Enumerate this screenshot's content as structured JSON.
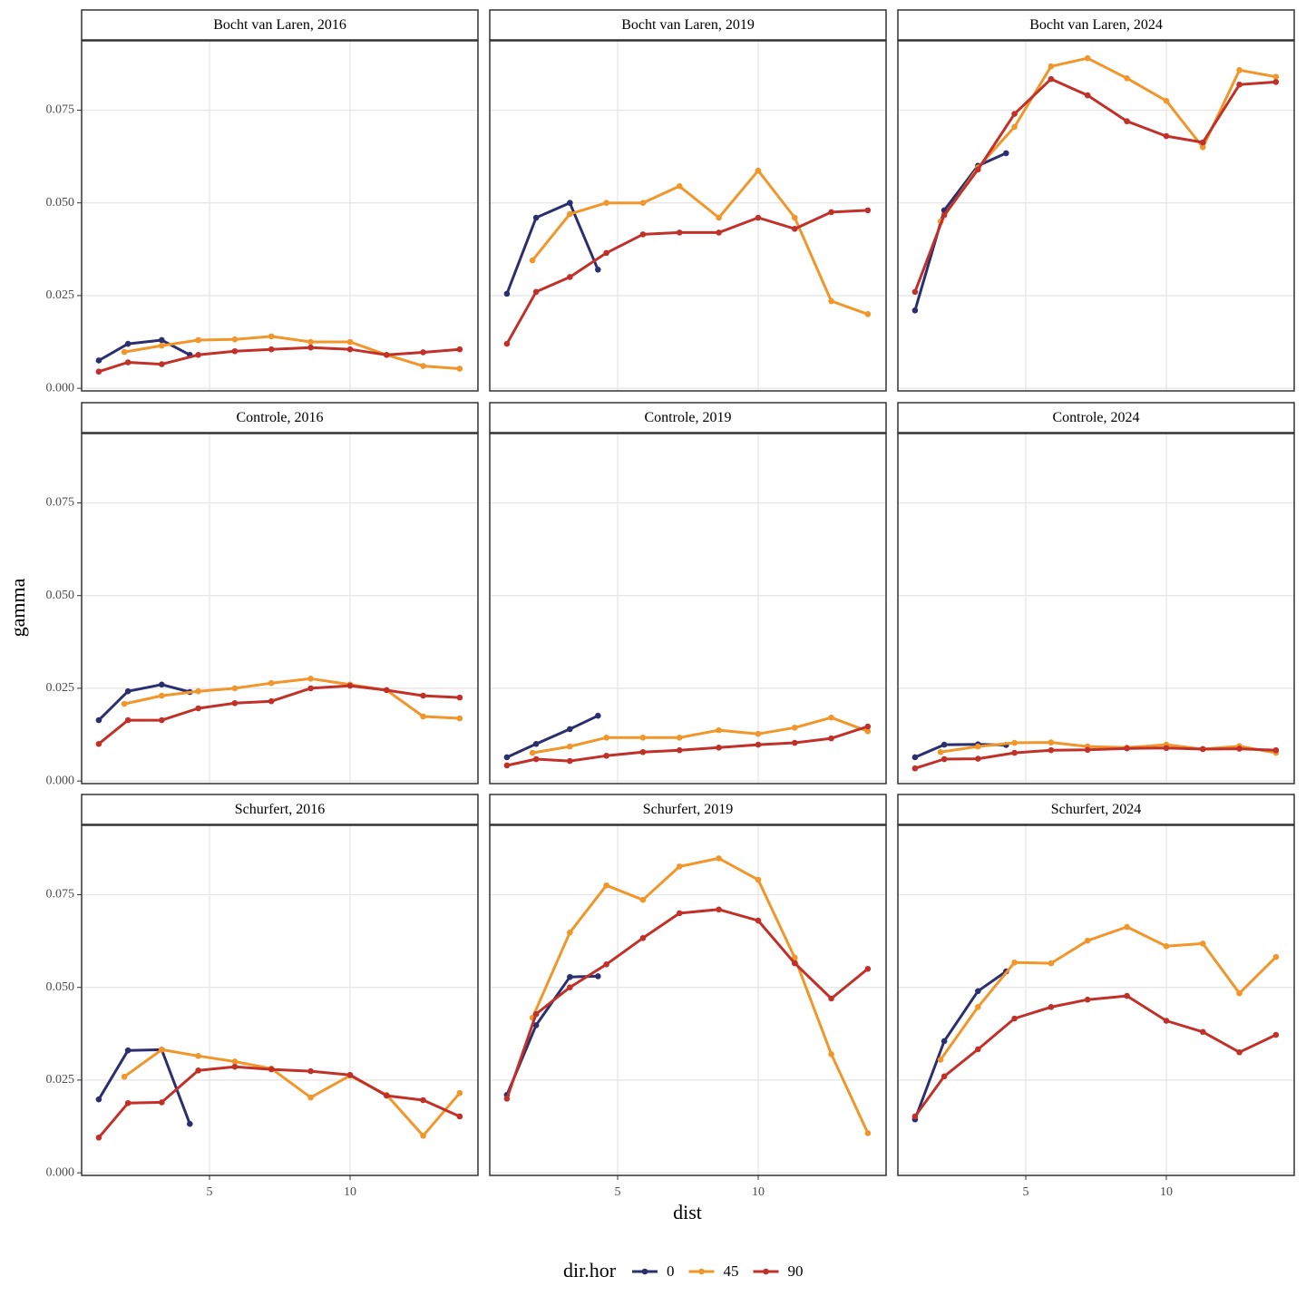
{
  "chart_data": {
    "type": "line",
    "x_label": "dist",
    "y_label": "gamma",
    "legend_title": "dir.hor",
    "legend": "bottom",
    "grid": true,
    "xlim": [
      0.45,
      14.55
    ],
    "ylim": [
      -0.0007,
      0.0937
    ],
    "xticks": [
      5,
      10
    ],
    "yticks": [
      {
        "value": 0,
        "label": "0.000"
      },
      {
        "value": 0.025,
        "label": "0.025"
      },
      {
        "value": 0.05,
        "label": "0.050"
      },
      {
        "value": 0.075,
        "label": "0.075"
      }
    ],
    "series": [
      {
        "name": "0",
        "color": "#2b2f6e"
      },
      {
        "name": "45",
        "color": "#f0962a"
      },
      {
        "name": "90",
        "color": "#c0312a"
      }
    ],
    "facets": [
      {
        "title": "Bocht van Laren, 2016",
        "series": [
          {
            "x": [
              1.06,
              2.1,
              3.3,
              4.3
            ],
            "values": [
              0.0075,
              0.012,
              0.013,
              0.009
            ]
          },
          {
            "x": [
              1.97,
              3.3,
              4.6,
              5.9,
              7.2,
              8.6,
              10,
              11.3,
              12.6,
              13.9
            ],
            "values": [
              0.0098,
              0.0115,
              0.013,
              0.0132,
              0.014,
              0.0125,
              0.0125,
              0.009,
              0.006,
              0.0053
            ]
          },
          {
            "x": [
              1.06,
              2.1,
              3.3,
              4.6,
              5.9,
              7.2,
              8.6,
              10,
              11.3,
              12.6,
              13.9
            ],
            "values": [
              0.0045,
              0.007,
              0.0065,
              0.009,
              0.01,
              0.0105,
              0.011,
              0.0105,
              0.009,
              0.0097,
              0.0105
            ]
          }
        ]
      },
      {
        "title": "Bocht van Laren, 2019",
        "series": [
          {
            "x": [
              1.06,
              2.1,
              3.3,
              4.3
            ],
            "values": [
              0.0255,
              0.046,
              0.05,
              0.032
            ]
          },
          {
            "x": [
              1.97,
              3.3,
              4.6,
              5.9,
              7.2,
              8.6,
              10,
              11.3,
              12.6,
              13.9
            ],
            "values": [
              0.0345,
              0.047,
              0.05,
              0.05,
              0.0545,
              0.046,
              0.0587,
              0.046,
              0.0235,
              0.02
            ]
          },
          {
            "x": [
              1.06,
              2.1,
              3.3,
              4.6,
              5.9,
              7.2,
              8.6,
              10,
              11.3,
              12.6,
              13.9
            ],
            "values": [
              0.012,
              0.026,
              0.03,
              0.0365,
              0.0415,
              0.042,
              0.042,
              0.046,
              0.043,
              0.0475,
              0.048
            ]
          }
        ]
      },
      {
        "title": "Bocht van Laren, 2024",
        "series": [
          {
            "x": [
              1.06,
              2.1,
              3.3,
              4.3
            ],
            "values": [
              0.021,
              0.048,
              0.06,
              0.0634
            ]
          },
          {
            "x": [
              1.97,
              3.3,
              4.6,
              5.9,
              7.2,
              8.6,
              10,
              11.3,
              12.6,
              13.9
            ],
            "values": [
              0.045,
              0.0595,
              0.0705,
              0.0868,
              0.089,
              0.0836,
              0.0775,
              0.065,
              0.0858,
              0.084
            ]
          },
          {
            "x": [
              1.06,
              2.1,
              3.3,
              4.6,
              5.9,
              7.2,
              8.6,
              10,
              11.3,
              12.6,
              13.9
            ],
            "values": [
              0.026,
              0.0467,
              0.059,
              0.074,
              0.0834,
              0.079,
              0.072,
              0.068,
              0.0663,
              0.0819,
              0.0826
            ]
          }
        ]
      },
      {
        "title": "Controle, 2016",
        "series": [
          {
            "x": [
              1.06,
              2.1,
              3.3,
              4.3
            ],
            "values": [
              0.0164,
              0.0242,
              0.026,
              0.024
            ]
          },
          {
            "x": [
              1.97,
              3.3,
              4.6,
              5.9,
              7.2,
              8.6,
              10,
              11.3,
              12.6,
              13.9
            ],
            "values": [
              0.0208,
              0.023,
              0.0242,
              0.025,
              0.0264,
              0.0276,
              0.026,
              0.0245,
              0.0174,
              0.0169
            ]
          },
          {
            "x": [
              1.06,
              2.1,
              3.3,
              4.6,
              5.9,
              7.2,
              8.6,
              10,
              11.3,
              12.6,
              13.9
            ],
            "values": [
              0.01,
              0.0164,
              0.0164,
              0.0196,
              0.021,
              0.0215,
              0.025,
              0.0257,
              0.0245,
              0.023,
              0.0225
            ]
          }
        ]
      },
      {
        "title": "Controle, 2019",
        "series": [
          {
            "x": [
              1.06,
              2.1,
              3.3,
              4.3
            ],
            "values": [
              0.0064,
              0.01,
              0.014,
              0.0176
            ]
          },
          {
            "x": [
              1.97,
              3.3,
              4.6,
              5.9,
              7.2,
              8.6,
              10,
              11.3,
              12.6,
              13.9
            ],
            "values": [
              0.0076,
              0.0093,
              0.0117,
              0.0117,
              0.0117,
              0.0137,
              0.0127,
              0.0144,
              0.0171,
              0.0134
            ]
          },
          {
            "x": [
              1.06,
              2.1,
              3.3,
              4.6,
              5.9,
              7.2,
              8.6,
              10,
              11.3,
              12.6,
              13.9
            ],
            "values": [
              0.0042,
              0.0059,
              0.0054,
              0.0068,
              0.0078,
              0.0083,
              0.009,
              0.0098,
              0.0103,
              0.0115,
              0.0147
            ]
          }
        ]
      },
      {
        "title": "Controle, 2024",
        "series": [
          {
            "x": [
              1.06,
              2.1,
              3.3,
              4.3
            ],
            "values": [
              0.0064,
              0.0098,
              0.0099,
              0.0097
            ]
          },
          {
            "x": [
              1.97,
              3.3,
              4.6,
              5.9,
              7.2,
              8.6,
              10,
              11.3,
              12.6,
              13.9
            ],
            "values": [
              0.0078,
              0.0093,
              0.0103,
              0.0104,
              0.0093,
              0.009,
              0.0098,
              0.0086,
              0.0094,
              0.0076
            ]
          },
          {
            "x": [
              1.06,
              2.1,
              3.3,
              4.6,
              5.9,
              7.2,
              8.6,
              10,
              11.3,
              12.6,
              13.9
            ],
            "values": [
              0.0034,
              0.0059,
              0.006,
              0.0076,
              0.0083,
              0.0084,
              0.0088,
              0.0089,
              0.0086,
              0.0087,
              0.0083
            ]
          }
        ]
      },
      {
        "title": "Schurfert, 2016",
        "series": [
          {
            "x": [
              1.06,
              2.1,
              3.3,
              4.3
            ],
            "values": [
              0.0198,
              0.033,
              0.0332,
              0.0132
            ]
          },
          {
            "x": [
              1.97,
              3.3,
              4.6,
              5.9,
              7.2,
              8.6,
              10,
              11.3,
              12.6,
              13.9
            ],
            "values": [
              0.0259,
              0.0332,
              0.0315,
              0.03,
              0.0281,
              0.0203,
              0.0262,
              0.021,
              0.01,
              0.0215
            ]
          },
          {
            "x": [
              1.06,
              2.1,
              3.3,
              4.6,
              5.9,
              7.2,
              8.6,
              10,
              11.3,
              12.6,
              13.9
            ],
            "values": [
              0.0095,
              0.0188,
              0.019,
              0.0276,
              0.0286,
              0.0279,
              0.0274,
              0.0264,
              0.0208,
              0.0196,
              0.0152
            ]
          }
        ]
      },
      {
        "title": "Schurfert, 2019",
        "series": [
          {
            "x": [
              1.06,
              2.1,
              3.3,
              4.3
            ],
            "values": [
              0.021,
              0.0398,
              0.0528,
              0.053
            ]
          },
          {
            "x": [
              1.97,
              3.3,
              4.6,
              5.9,
              7.2,
              8.6,
              10,
              11.3,
              12.6,
              13.9
            ],
            "values": [
              0.0418,
              0.0648,
              0.0775,
              0.0736,
              0.0826,
              0.0848,
              0.079,
              0.058,
              0.032,
              0.0107
            ]
          },
          {
            "x": [
              1.06,
              2.1,
              3.3,
              4.6,
              5.9,
              7.2,
              8.6,
              10,
              11.3,
              12.6,
              13.9
            ],
            "values": [
              0.02,
              0.0428,
              0.05,
              0.0562,
              0.0633,
              0.07,
              0.071,
              0.068,
              0.0565,
              0.047,
              0.055
            ]
          }
        ]
      },
      {
        "title": "Schurfert, 2024",
        "series": [
          {
            "x": [
              1.06,
              2.1,
              3.3,
              4.3
            ],
            "values": [
              0.0144,
              0.0355,
              0.049,
              0.0543
            ]
          },
          {
            "x": [
              1.97,
              3.3,
              4.6,
              5.9,
              7.2,
              8.6,
              10,
              11.3,
              12.6,
              13.9
            ],
            "values": [
              0.0305,
              0.0447,
              0.0567,
              0.0565,
              0.0626,
              0.0663,
              0.0611,
              0.0618,
              0.0484,
              0.0582
            ]
          },
          {
            "x": [
              1.06,
              2.1,
              3.3,
              4.6,
              5.9,
              7.2,
              8.6,
              10,
              11.3,
              12.6,
              13.9
            ],
            "values": [
              0.0152,
              0.026,
              0.0333,
              0.0416,
              0.0447,
              0.0467,
              0.0477,
              0.041,
              0.038,
              0.0325,
              0.0372
            ]
          }
        ]
      }
    ]
  }
}
